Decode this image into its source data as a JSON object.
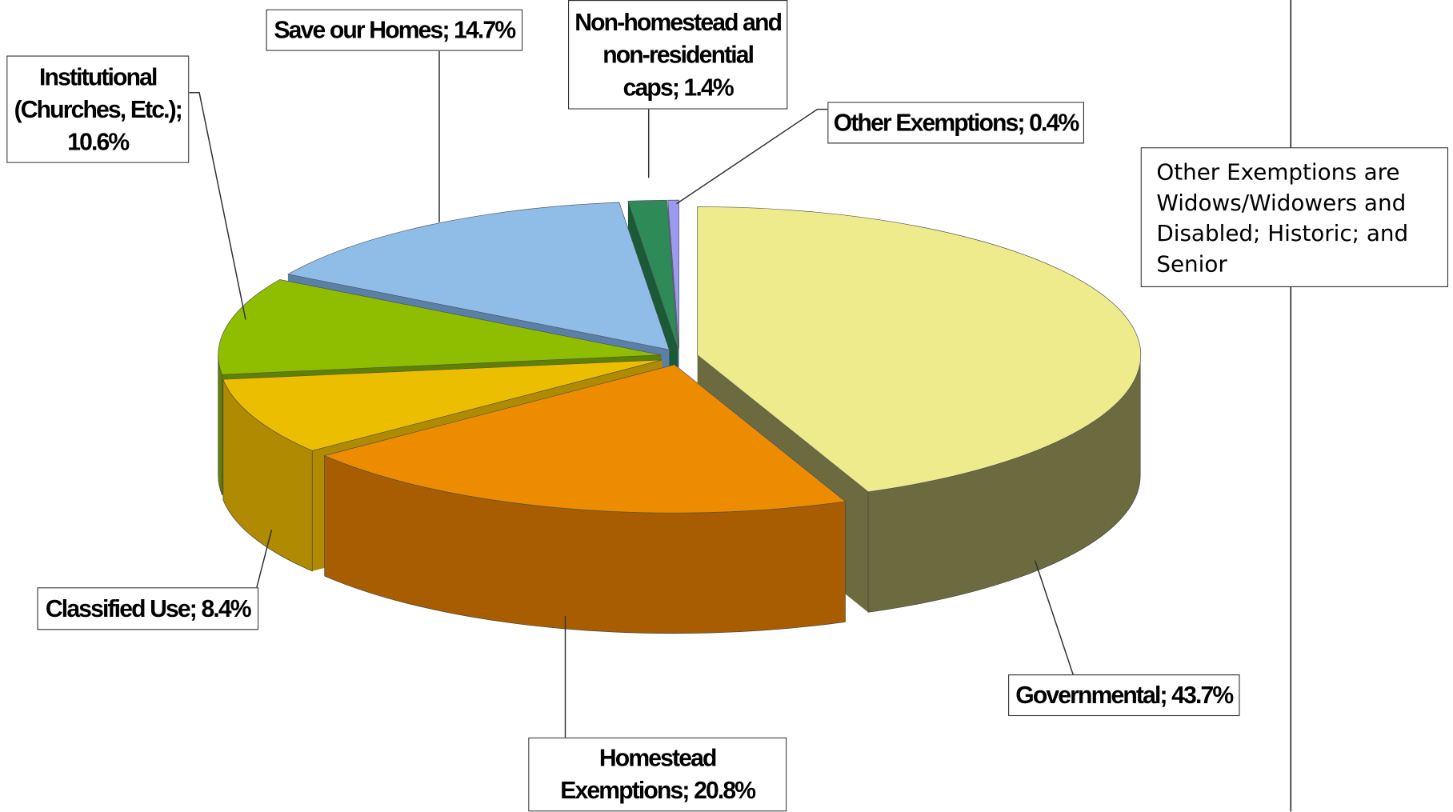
{
  "chart_data": {
    "type": "pie3d",
    "categories": [
      "Governmental; 43.7%",
      "Homestead Exemptions; 20.8%",
      "Classified Use; 8.4%",
      "Institutional (Churches, Etc.); 10.6%",
      "Save our Homes; 14.7%",
      "Non-homestead and non-residential caps; 1.4%",
      "Other Exemptions; 0.4%"
    ],
    "values": [
      43.7,
      20.8,
      8.4,
      10.6,
      14.7,
      1.4,
      0.4
    ],
    "colors": [
      "#eeeb8c",
      "#ee8c00",
      "#ecbe00",
      "#8fbe00",
      "#8fbde8",
      "#2e8b57",
      "#9a9aee"
    ],
    "side_colors": [
      "#6b6b3f",
      "#a85e00",
      "#b08a00",
      "#5f8200",
      "#5a7fa8",
      "#1a5a36",
      "#6a6ab0"
    ],
    "note": "Other Exemptions are Widows/Widowers and Disabled; Historic; and Senior"
  }
}
